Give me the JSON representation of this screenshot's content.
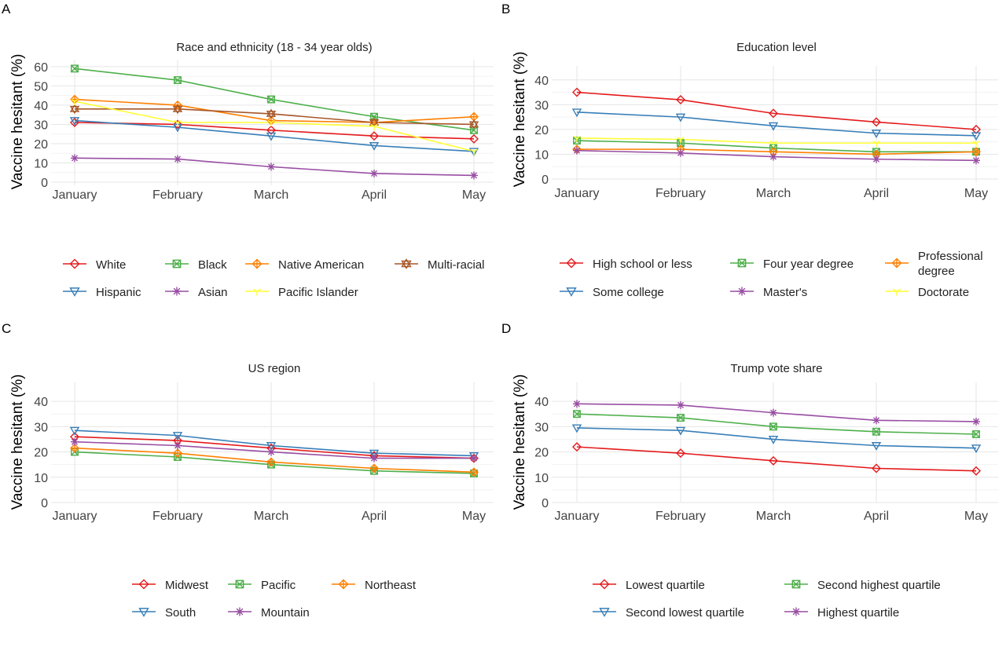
{
  "months": [
    "January",
    "February",
    "March",
    "April",
    "May"
  ],
  "palette": {
    "red": "#e41a1c",
    "blue": "#377eb8",
    "green": "#4daf4a",
    "purple": "#984ea3",
    "orange": "#ff7f00",
    "yellow": "#ffff33",
    "brown": "#a65628"
  },
  "chart_data": [
    {
      "panel": "A",
      "type": "line",
      "title": "Race and ethnicity (18 - 34 year olds)",
      "xlabel": "",
      "ylabel": "Vaccine hesitant (%)",
      "x": [
        "January",
        "February",
        "March",
        "April",
        "May"
      ],
      "ylim": [
        0,
        62
      ],
      "yticks": [
        0,
        10,
        20,
        30,
        40,
        50,
        60
      ],
      "grid": true,
      "legend_position": "bottom",
      "series": [
        {
          "name": "White",
          "color": "#e41a1c",
          "marker": "diamond",
          "values": [
            31,
            30,
            27,
            24,
            22.5
          ]
        },
        {
          "name": "Black",
          "color": "#4daf4a",
          "marker": "square-x",
          "values": [
            59,
            53,
            43,
            34,
            27
          ]
        },
        {
          "name": "Native American",
          "color": "#ff7f00",
          "marker": "diamond-plus",
          "values": [
            43,
            40,
            32,
            31,
            34
          ]
        },
        {
          "name": "Multi-racial",
          "color": "#a65628",
          "marker": "star-triangle",
          "values": [
            38,
            38,
            35.5,
            31,
            30
          ]
        },
        {
          "name": "Hispanic",
          "color": "#377eb8",
          "marker": "triangle-down",
          "values": [
            32,
            28.5,
            24,
            19,
            16
          ]
        },
        {
          "name": "Asian",
          "color": "#984ea3",
          "marker": "asterisk",
          "values": [
            12.5,
            12,
            8,
            4.5,
            3.5
          ]
        },
        {
          "name": "Pacific Islander",
          "color": "#ffff33",
          "marker": "y-shape",
          "values": [
            42,
            31,
            31,
            29,
            16
          ]
        }
      ]
    },
    {
      "panel": "B",
      "type": "line",
      "title": "Education level",
      "xlabel": "",
      "ylabel": "Vaccine hesitant (%)",
      "x": [
        "January",
        "February",
        "March",
        "April",
        "May"
      ],
      "ylim": [
        0,
        45
      ],
      "yticks": [
        0,
        10,
        20,
        30,
        40
      ],
      "grid": true,
      "legend_position": "bottom",
      "series": [
        {
          "name": "High school or less",
          "color": "#e41a1c",
          "marker": "diamond",
          "values": [
            35,
            32,
            26.5,
            23,
            20
          ]
        },
        {
          "name": "Four year degree",
          "color": "#4daf4a",
          "marker": "square-x",
          "values": [
            15.5,
            14.5,
            12.5,
            11,
            11
          ]
        },
        {
          "name": "Professional\ndegree",
          "color": "#ff7f00",
          "marker": "diamond-plus",
          "values": [
            12,
            12,
            11,
            10,
            11
          ]
        },
        {
          "name": "Some college",
          "color": "#377eb8",
          "marker": "triangle-down",
          "values": [
            27,
            25,
            21.5,
            18.5,
            17.5
          ]
        },
        {
          "name": "Master's",
          "color": "#984ea3",
          "marker": "asterisk",
          "values": [
            11.5,
            10.5,
            9,
            8,
            7.5
          ]
        },
        {
          "name": "Doctorate",
          "color": "#ffff33",
          "marker": "y-shape",
          "values": [
            16.5,
            16,
            14.5,
            14.5,
            14.5
          ]
        }
      ]
    },
    {
      "panel": "C",
      "type": "line",
      "title": "US region",
      "xlabel": "",
      "ylabel": "Vaccine hesitant (%)",
      "x": [
        "January",
        "February",
        "March",
        "April",
        "May"
      ],
      "ylim": [
        0,
        45
      ],
      "yticks": [
        0,
        10,
        20,
        30,
        40
      ],
      "grid": true,
      "legend_position": "bottom",
      "series": [
        {
          "name": "Midwest",
          "color": "#e41a1c",
          "marker": "diamond",
          "values": [
            26,
            24.5,
            21.5,
            18.5,
            17.5
          ]
        },
        {
          "name": "Pacific",
          "color": "#4daf4a",
          "marker": "square-x",
          "values": [
            20,
            18,
            15,
            12.5,
            11.5
          ]
        },
        {
          "name": "Northeast",
          "color": "#ff7f00",
          "marker": "diamond-plus",
          "values": [
            21.5,
            19.5,
            16,
            13.5,
            12
          ]
        },
        {
          "name": "South",
          "color": "#377eb8",
          "marker": "triangle-down",
          "values": [
            28.5,
            26.5,
            22.5,
            19.5,
            18.5
          ]
        },
        {
          "name": "Mountain",
          "color": "#984ea3",
          "marker": "asterisk",
          "values": [
            24,
            22.5,
            20,
            17.5,
            17.5
          ]
        }
      ]
    },
    {
      "panel": "D",
      "type": "line",
      "title": "Trump vote share",
      "xlabel": "",
      "ylabel": "Vaccine hesitant (%)",
      "x": [
        "January",
        "February",
        "March",
        "April",
        "May"
      ],
      "ylim": [
        0,
        45
      ],
      "yticks": [
        0,
        10,
        20,
        30,
        40
      ],
      "grid": true,
      "legend_position": "bottom",
      "series": [
        {
          "name": "Lowest quartile",
          "color": "#e41a1c",
          "marker": "diamond",
          "values": [
            22,
            19.5,
            16.5,
            13.5,
            12.5
          ]
        },
        {
          "name": "Second highest quartile",
          "color": "#4daf4a",
          "marker": "square-x",
          "values": [
            35,
            33.5,
            30,
            28,
            27
          ]
        },
        {
          "name": "Second lowest quartile",
          "color": "#377eb8",
          "marker": "triangle-down",
          "values": [
            29.5,
            28.5,
            25,
            22.5,
            21.5
          ]
        },
        {
          "name": "Highest quartile",
          "color": "#984ea3",
          "marker": "asterisk",
          "values": [
            39,
            38.5,
            35.5,
            32.5,
            32
          ]
        }
      ]
    }
  ]
}
